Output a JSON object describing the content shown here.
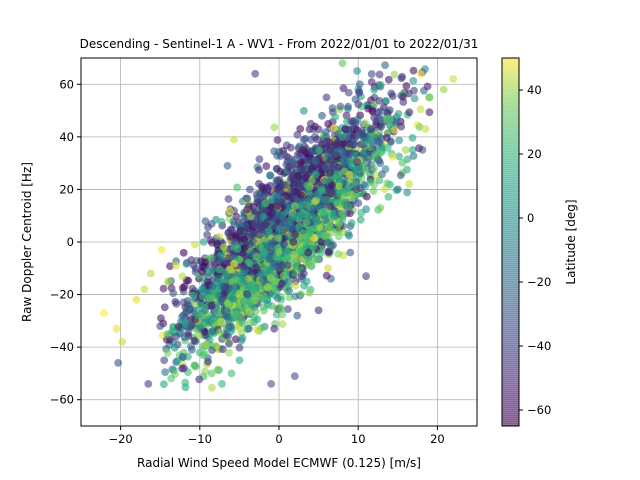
{
  "chart_data": {
    "type": "scatter",
    "title": "Descending - Sentinel-1 A - WV1 - From 2022/01/01 to 2022/01/31",
    "xlabel": "Radial Wind Speed Model ECMWF (0.125) [m/s]",
    "ylabel": "Raw Doppler Centroid [Hz]",
    "xlim": [
      -25,
      25
    ],
    "ylim": [
      -70,
      70
    ],
    "xticks": [
      -20,
      -10,
      0,
      10,
      20
    ],
    "yticks": [
      -60,
      -40,
      -20,
      0,
      20,
      40,
      60
    ],
    "grid": true,
    "colorbar": {
      "label": "Latitude [deg]",
      "range": [
        -65,
        50
      ],
      "ticks": [
        -60,
        -40,
        -20,
        0,
        20,
        40
      ],
      "colormap": "viridis",
      "alpha": 0.6
    },
    "points": [
      [
        -22.1,
        -27,
        50
      ],
      [
        -20.5,
        -33,
        48
      ],
      [
        -19.8,
        -38,
        45
      ],
      [
        -20.3,
        -46,
        -30
      ],
      [
        -16.5,
        -54,
        -40
      ],
      [
        -18,
        -22,
        47
      ],
      [
        -17,
        -18,
        44
      ],
      [
        -16.2,
        -12,
        42
      ],
      [
        -14.8,
        -3,
        49
      ],
      [
        -14,
        -15,
        40
      ],
      [
        -13,
        -9,
        46
      ],
      [
        -12.2,
        -13,
        43
      ],
      [
        -10.6,
        -1,
        44
      ],
      [
        -15,
        -32,
        -35
      ],
      [
        -14.5,
        -45,
        -38
      ],
      [
        -13,
        -36,
        -42
      ],
      [
        -12,
        -48,
        -45
      ],
      [
        -11,
        -41,
        -30
      ],
      [
        -8.5,
        -50,
        30
      ],
      [
        -7.2,
        -54,
        20
      ],
      [
        -6,
        -50,
        25
      ],
      [
        -5,
        -45,
        10
      ],
      [
        -3.8,
        -33,
        -20
      ],
      [
        -0.6,
        -33,
        -50
      ],
      [
        2,
        -51,
        -35
      ],
      [
        -1,
        -54,
        -30
      ],
      [
        -9.5,
        0,
        10
      ],
      [
        -8.5,
        -6,
        25
      ],
      [
        -5.7,
        39,
        45
      ],
      [
        -6.5,
        29,
        -25
      ],
      [
        -3,
        64,
        -40
      ],
      [
        -7,
        -2,
        40
      ],
      [
        2.3,
        -28,
        -30
      ],
      [
        11,
        -13,
        -40
      ],
      [
        12,
        28,
        30
      ],
      [
        19,
        55,
        38
      ],
      [
        22,
        62,
        45
      ],
      [
        20.8,
        58,
        40
      ],
      [
        17.9,
        64,
        48
      ],
      [
        18.5,
        43,
        45
      ],
      [
        16,
        35,
        40
      ],
      [
        15,
        20,
        -20
      ],
      [
        12.8,
        13,
        35
      ],
      [
        14,
        47,
        20
      ],
      [
        10.2,
        60,
        -25
      ],
      [
        8,
        68,
        30
      ],
      [
        9,
        -4,
        -30
      ],
      [
        6.2,
        -10,
        45
      ],
      [
        5,
        -26,
        -50
      ],
      [
        3.5,
        -15,
        10
      ],
      [
        1.8,
        0,
        -60
      ],
      [
        0,
        5,
        0
      ],
      [
        -2,
        -5,
        15
      ],
      [
        -4,
        -20,
        -10
      ],
      [
        3,
        35,
        -55
      ],
      [
        4,
        45,
        -45
      ],
      [
        6,
        55,
        -40
      ],
      [
        8,
        40,
        20
      ]
    ],
    "cluster": {
      "x_mean": 0.5,
      "x_sd": 6.5,
      "slope": 2.9,
      "intercept": 3,
      "residual_sd": 12,
      "count": 3200
    }
  }
}
